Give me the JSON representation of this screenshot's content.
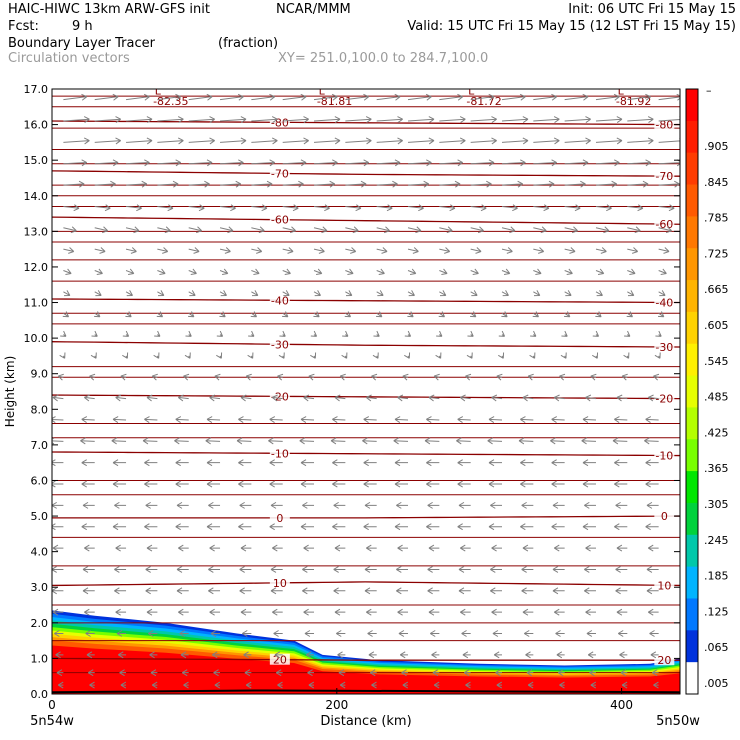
{
  "header": {
    "line1_left": "HAIC-HIWC 13km ARW-GFS init",
    "line1_center": "NCAR/MMM",
    "line1_right": "Init: 06 UTC Fri 15 May 15",
    "line2_left_label": "Fcst:",
    "line2_left_value": "9 h",
    "line2_right": "Valid: 15 UTC Fri 15 May 15 (12 LST Fri 15 May 15)",
    "field_name": "Boundary Layer Tracer",
    "field_units": "(fraction)",
    "vector_name": "Circulation vectors",
    "xy_range": "XY= 251.0,100.0 to 284.7,100.0"
  },
  "colors": {
    "contour": "#8b0000",
    "vector": "#808080",
    "low_label": "#8b0000"
  },
  "chart_data": {
    "type": "heatmap",
    "title": "Boundary Layer Tracer",
    "units": "(fraction)",
    "xlabel": "Distance (km)",
    "ylabel": "Height (km)",
    "xlim": [
      0,
      441
    ],
    "ylim": [
      0,
      17
    ],
    "x_ticks": [
      0,
      200,
      400
    ],
    "x_tick_labels": [
      "0",
      "200",
      "400"
    ],
    "x_end_labels": [
      "5n54w",
      "5n50w"
    ],
    "y_ticks": [
      0,
      1,
      2,
      3,
      4,
      5,
      6,
      7,
      8,
      9,
      10,
      11,
      12,
      13,
      14,
      15,
      16,
      17
    ],
    "y_tick_labels": [
      "0.0",
      "1.0",
      "2.0",
      "3.0",
      "4.0",
      "5.0",
      "6.0",
      "7.0",
      "8.0",
      "9.0",
      "10.0",
      "11.0",
      "12.0",
      "13.0",
      "14.0",
      "15.0",
      "16.0",
      "17.0"
    ],
    "colorbar": {
      "top_label": "–",
      "labels": [
        ".905",
        ".845",
        ".785",
        ".725",
        ".665",
        ".605",
        ".545",
        ".485",
        ".425",
        ".365",
        ".305",
        ".245",
        ".185",
        ".125",
        ".065",
        ".005"
      ],
      "colors": [
        "#ff0000",
        "#ff1e00",
        "#ff3c00",
        "#ff5a00",
        "#ff7800",
        "#ff9600",
        "#ffb400",
        "#ffd200",
        "#fff000",
        "#e6ff00",
        "#b4ff00",
        "#78ff00",
        "#00e600",
        "#00d23c",
        "#00c8aa",
        "#00b4ff",
        "#0078ff",
        "#0032dc",
        "#ffffff"
      ]
    },
    "tracer_top_km": [
      {
        "x": 0,
        "top": 2.35
      },
      {
        "x": 30,
        "top": 2.2
      },
      {
        "x": 80,
        "top": 2.0
      },
      {
        "x": 130,
        "top": 1.7
      },
      {
        "x": 170,
        "top": 1.5
      },
      {
        "x": 190,
        "top": 1.1
      },
      {
        "x": 230,
        "top": 0.95
      },
      {
        "x": 300,
        "top": 0.85
      },
      {
        "x": 360,
        "top": 0.8
      },
      {
        "x": 420,
        "top": 0.85
      },
      {
        "x": 441,
        "top": 1.0
      }
    ],
    "terrain_km": [
      {
        "x": 0,
        "h": 0.05
      },
      {
        "x": 150,
        "h": 0.1
      },
      {
        "x": 441,
        "h": 0.05
      }
    ],
    "temperature_contours": [
      {
        "level": -80,
        "label": "-80",
        "heights": [
          16.1,
          16.05,
          16.0
        ]
      },
      {
        "level": -70,
        "label": "-70",
        "heights": [
          14.7,
          14.6,
          14.55
        ]
      },
      {
        "level": -60,
        "label": "-60",
        "heights": [
          13.4,
          13.3,
          13.2
        ]
      },
      {
        "level": -40,
        "label": "-40",
        "heights": [
          11.1,
          11.05,
          11.0
        ]
      },
      {
        "level": -30,
        "label": "-30",
        "heights": [
          9.9,
          9.8,
          9.75
        ]
      },
      {
        "level": -20,
        "label": "-20",
        "heights": [
          8.4,
          8.35,
          8.3
        ]
      },
      {
        "level": -10,
        "label": "-10",
        "heights": [
          6.8,
          6.75,
          6.7
        ]
      },
      {
        "level": 0,
        "label": "0",
        "heights": [
          4.95,
          4.95,
          5.0
        ]
      },
      {
        "level": 10,
        "label": "10",
        "heights": [
          3.05,
          3.15,
          3.05
        ]
      },
      {
        "level": 20,
        "label": "20",
        "heights": [
          1.0,
          0.95,
          0.95
        ]
      }
    ],
    "extra_contours_km": [
      16.8,
      16.5,
      15.9,
      15.3,
      14.9,
      14.3,
      14.0,
      13.7,
      13.0,
      12.7,
      12.2,
      11.6,
      10.7,
      10.4,
      9.2,
      8.9,
      7.6,
      7.2,
      6.0,
      5.6,
      4.4,
      3.6,
      2.5,
      2.0,
      1.5,
      0.6
    ],
    "lows": [
      {
        "x": 75,
        "label": "L",
        "value": "-82.35"
      },
      {
        "x": 190,
        "label": "L",
        "value": "-81.81"
      },
      {
        "x": 295,
        "label": "L",
        "value": "-81.72"
      },
      {
        "x": 400,
        "label": "L",
        "value": "-81.92"
      }
    ],
    "circulation_vectors": {
      "x_spacing_km": 22,
      "rows": [
        {
          "z": 16.7,
          "u": 18,
          "w": 0.5
        },
        {
          "z": 16.1,
          "u": 20,
          "w": 0.3
        },
        {
          "z": 15.5,
          "u": 20,
          "w": 0.3
        },
        {
          "z": 14.9,
          "u": 18,
          "w": 0.2
        },
        {
          "z": 14.3,
          "u": 16,
          "w": 0.2
        },
        {
          "z": 13.7,
          "u": 12,
          "w": -0.3
        },
        {
          "z": 13.1,
          "u": 10,
          "w": -0.5
        },
        {
          "z": 12.5,
          "u": 8,
          "w": -0.4
        },
        {
          "z": 11.9,
          "u": 6,
          "w": -0.5
        },
        {
          "z": 11.3,
          "u": 5,
          "w": -0.6
        },
        {
          "z": 10.7,
          "u": 4,
          "w": -0.6
        },
        {
          "z": 10.1,
          "u": 2,
          "w": -0.3
        },
        {
          "z": 9.5,
          "u": 1,
          "w": -0.4
        },
        {
          "z": 8.9,
          "u": -4,
          "w": 0.2
        },
        {
          "z": 8.3,
          "u": -8,
          "w": 0.2
        },
        {
          "z": 7.7,
          "u": -10,
          "w": 0.1
        },
        {
          "z": 7.1,
          "u": -11,
          "w": 0.1
        },
        {
          "z": 6.5,
          "u": -10,
          "w": 0.0
        },
        {
          "z": 5.9,
          "u": -10,
          "w": 0.0
        },
        {
          "z": 5.3,
          "u": -9,
          "w": 0.0
        },
        {
          "z": 4.7,
          "u": -10,
          "w": 0.0
        },
        {
          "z": 4.1,
          "u": -8,
          "w": 0.0
        },
        {
          "z": 3.5,
          "u": -9,
          "w": 0.0
        },
        {
          "z": 2.9,
          "u": -9,
          "w": 0.0
        },
        {
          "z": 2.3,
          "u": -8,
          "w": 0.0
        },
        {
          "z": 1.7,
          "u": -7,
          "w": 0.0
        },
        {
          "z": 1.1,
          "u": -6,
          "w": 0.0
        },
        {
          "z": 0.6,
          "u": -5,
          "w": 0.0
        },
        {
          "z": 0.25,
          "u": -4,
          "w": 0.0
        }
      ]
    }
  }
}
